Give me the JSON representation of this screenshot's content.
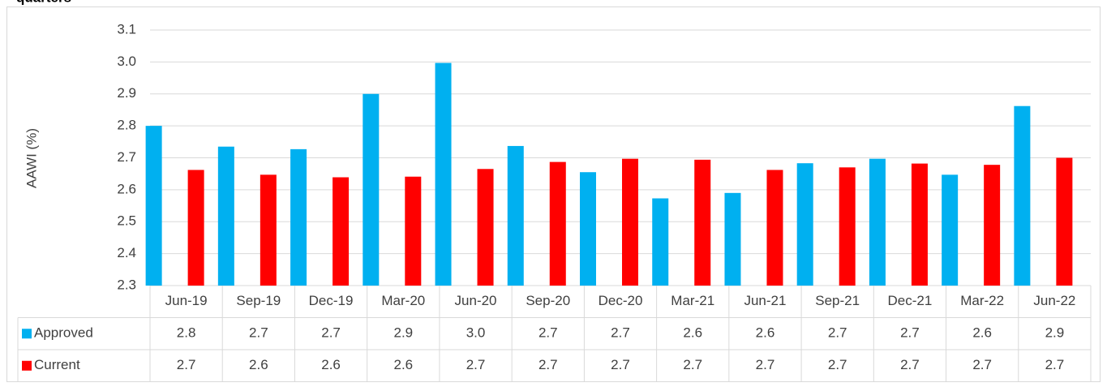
{
  "chart_data": {
    "type": "bar",
    "title": "quarters",
    "y_label": "AAWI (%)",
    "categories": [
      "Jun-19",
      "Sep-19",
      "Dec-19",
      "Mar-20",
      "Jun-20",
      "Sep-20",
      "Dec-20",
      "Mar-21",
      "Jun-21",
      "Sep-21",
      "Dec-21",
      "Mar-22",
      "Jun-22"
    ],
    "series": [
      {
        "name": "Approved",
        "color": "#00b0f0",
        "values": [
          2.8,
          2.735,
          2.727,
          2.9,
          2.997,
          2.737,
          2.655,
          2.573,
          2.59,
          2.683,
          2.697,
          2.647,
          2.862
        ],
        "value_labels": [
          "2.8",
          "2.7",
          "2.7",
          "2.9",
          "3.0",
          "2.7",
          "2.7",
          "2.6",
          "2.6",
          "2.7",
          "2.7",
          "2.6",
          "2.9"
        ]
      },
      {
        "name": "Current",
        "color": "#ff0000",
        "values": [
          2.662,
          2.647,
          2.639,
          2.641,
          2.665,
          2.687,
          2.697,
          2.694,
          2.662,
          2.67,
          2.682,
          2.678,
          2.7
        ],
        "value_labels": [
          "2.7",
          "2.6",
          "2.6",
          "2.6",
          "2.7",
          "2.7",
          "2.7",
          "2.7",
          "2.7",
          "2.7",
          "2.7",
          "2.7",
          "2.7"
        ]
      }
    ],
    "ylim": [
      2.3,
      3.1
    ],
    "yticks": [
      {
        "value": 2.3,
        "label": "2.3"
      },
      {
        "value": 2.4,
        "label": "2.4"
      },
      {
        "value": 2.5,
        "label": "2.5"
      },
      {
        "value": 2.6,
        "label": "2.6"
      },
      {
        "value": 2.7,
        "label": "2.7"
      },
      {
        "value": 2.8,
        "label": "2.8"
      },
      {
        "value": 2.9,
        "label": "2.9"
      },
      {
        "value": 3.0,
        "label": "3.0"
      },
      {
        "value": 3.1,
        "label": "3.1"
      }
    ],
    "grid": true
  }
}
